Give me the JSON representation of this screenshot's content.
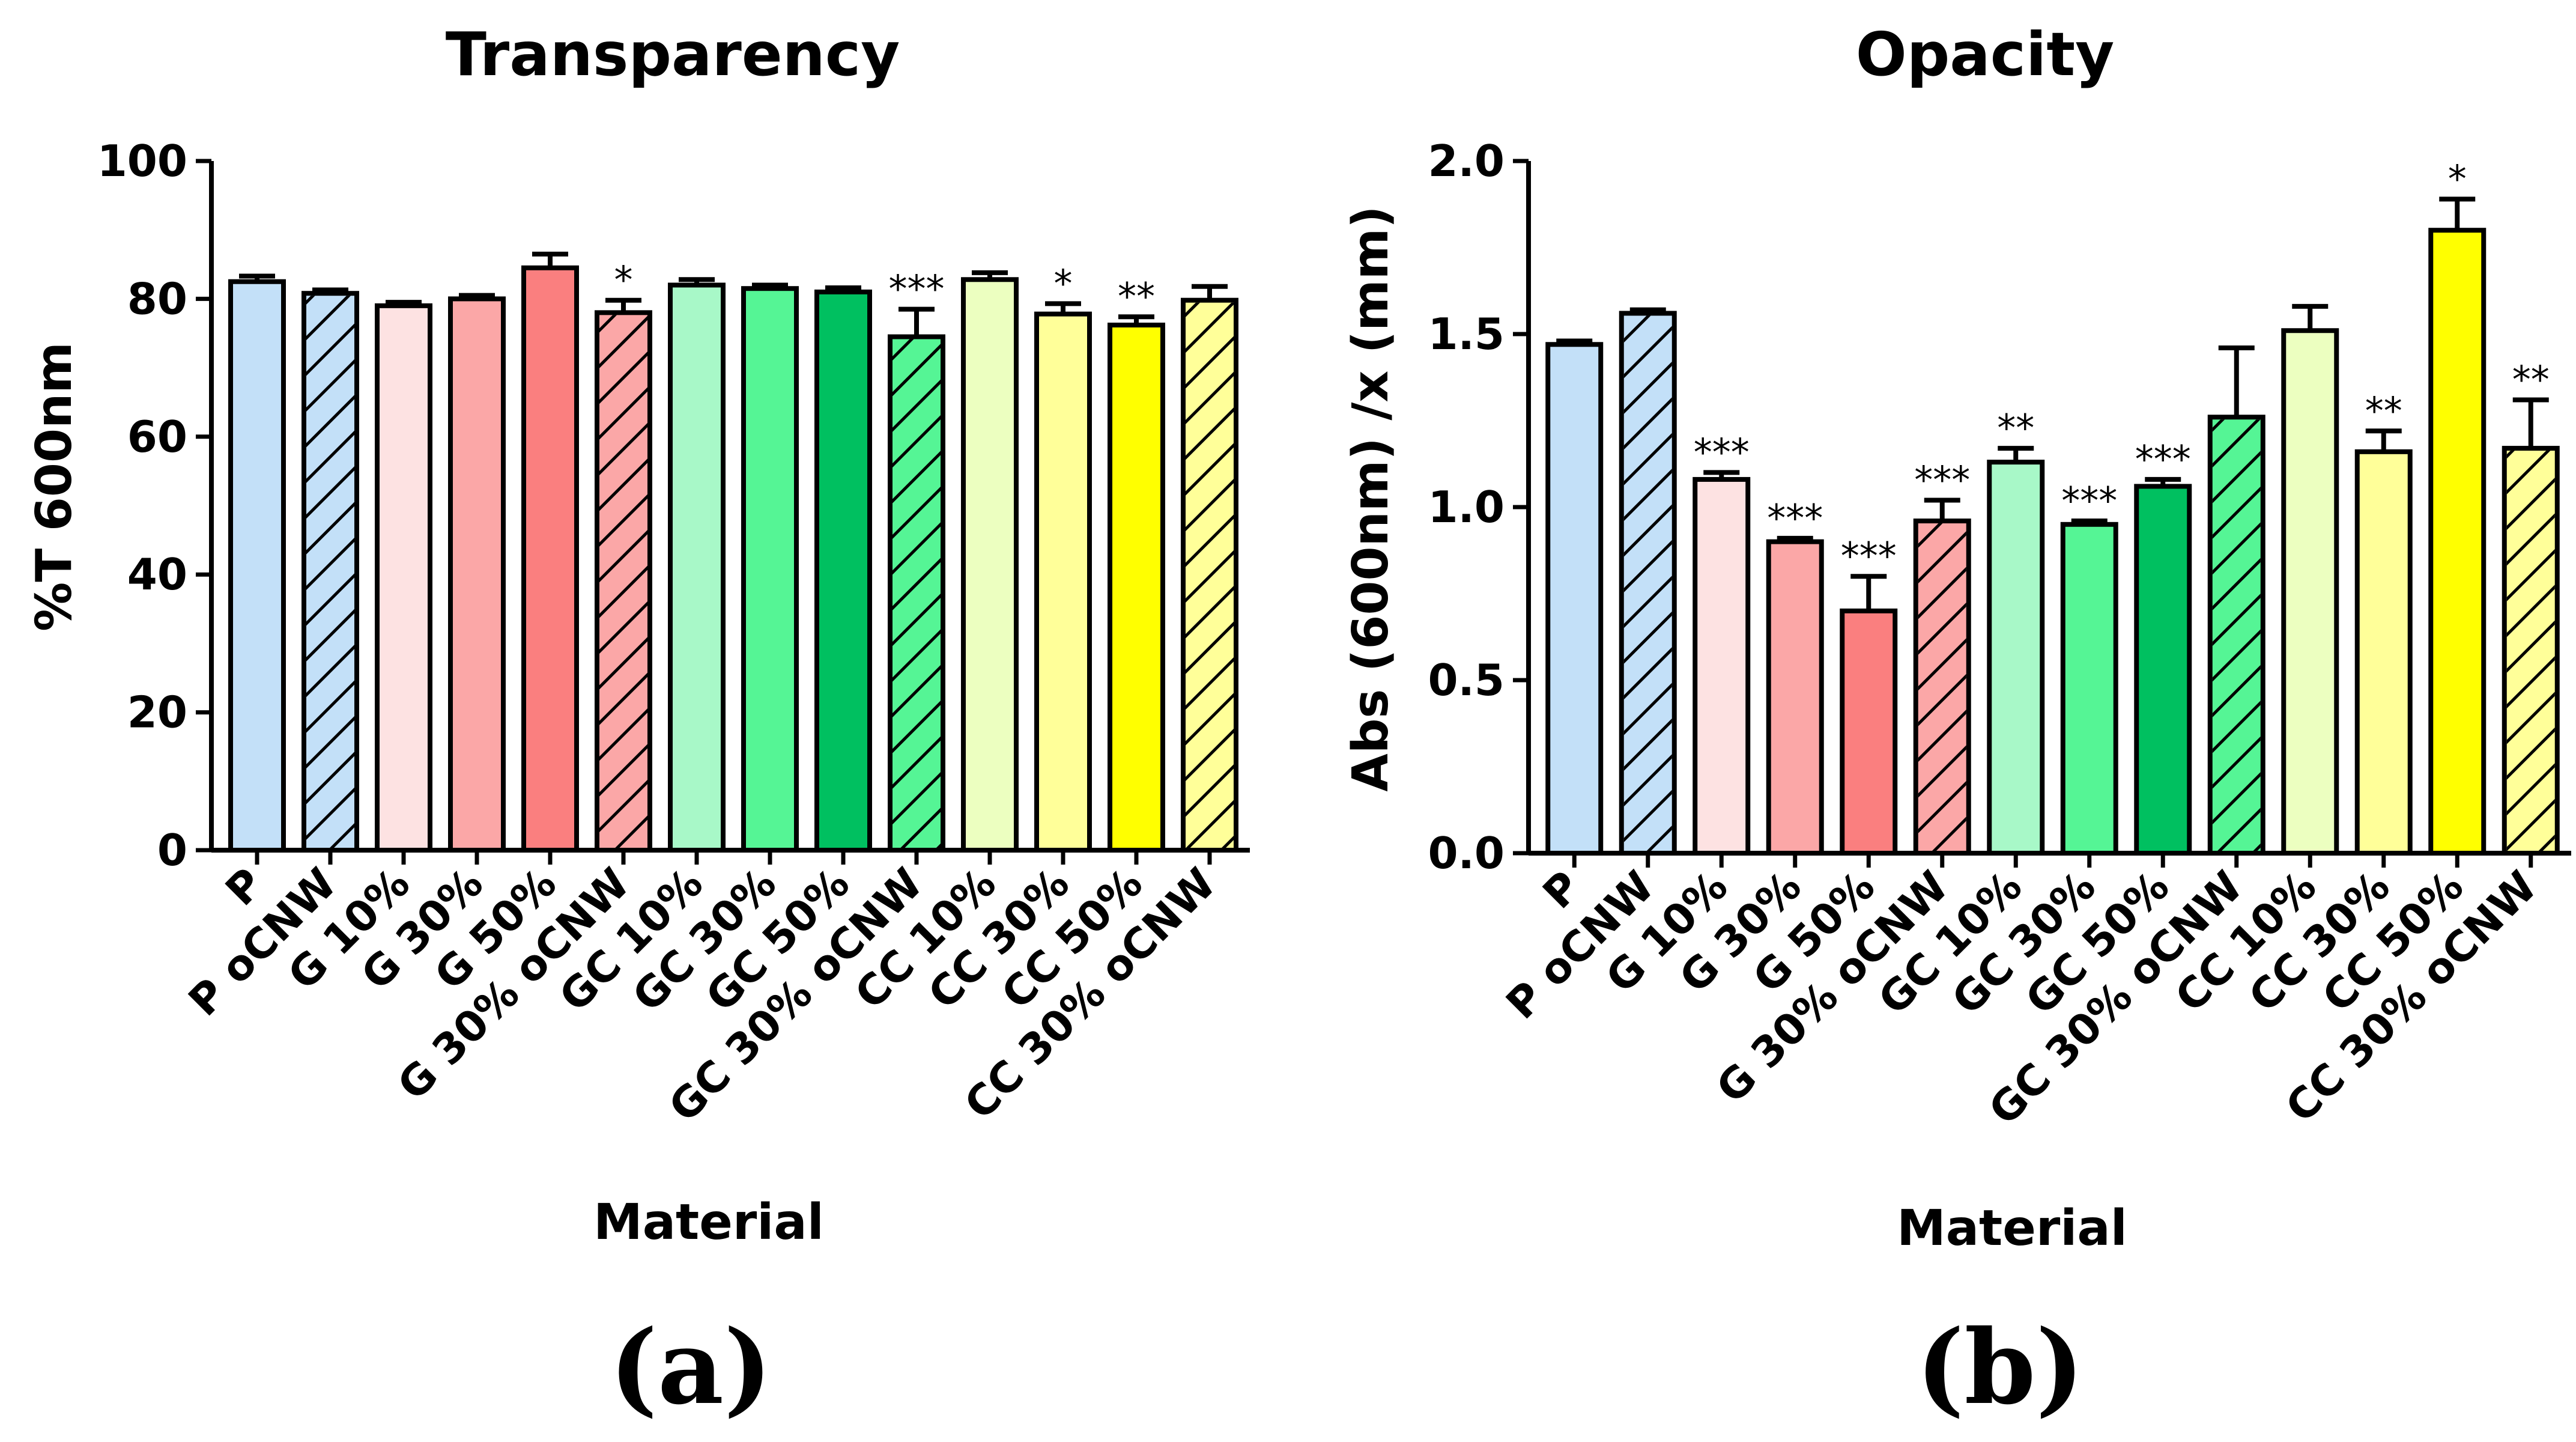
{
  "chart_data": [
    {
      "panel_label": "(a)",
      "type": "bar",
      "title": "Transparency",
      "xlabel": "Material",
      "ylabel": "%T 600nm",
      "ylim": [
        0,
        100
      ],
      "yticks": [
        "0",
        "20",
        "40",
        "60",
        "80",
        "100"
      ],
      "categories": [
        "P",
        "P oCNW",
        "G 10%",
        "G 30%",
        "G 50%",
        "G 30% oCNW",
        "GC 10%",
        "GC 30%",
        "GC 50%",
        "GC 30% oCNW",
        "CC 10%",
        "CC 30%",
        "CC 50%",
        "CC 30% oCNW"
      ],
      "values": [
        82.5,
        80.8,
        79.0,
        80.0,
        84.5,
        78.0,
        82.0,
        81.5,
        81.0,
        74.5,
        82.8,
        77.8,
        76.2,
        79.8
      ],
      "errors": [
        0.8,
        0.5,
        0.5,
        0.5,
        2.0,
        1.8,
        0.8,
        0.5,
        0.6,
        4.0,
        1.0,
        1.5,
        1.2,
        2.0
      ],
      "significance": [
        "",
        "",
        "",
        "",
        "",
        "*",
        "",
        "",
        "",
        "***",
        "",
        "*",
        "**",
        ""
      ],
      "colors": [
        "#c3e0f8",
        "#c3e0f8",
        "#fde2e2",
        "#fba7a7",
        "#fa7f7f",
        "#fba7a7",
        "#a8f8c8",
        "#55f595",
        "#00c060",
        "#55f595",
        "#ecffc0",
        "#ffff99",
        "#ffff00",
        "#ffff99"
      ],
      "hatched": [
        false,
        true,
        false,
        false,
        false,
        true,
        false,
        false,
        false,
        true,
        false,
        false,
        false,
        true
      ]
    },
    {
      "panel_label": "(b)",
      "type": "bar",
      "title": "Opacity",
      "xlabel": "Material",
      "ylabel": "Abs (600nm) /x (mm)",
      "ylim": [
        0,
        2.0
      ],
      "yticks": [
        "0.0",
        "0.5",
        "1.0",
        "1.5",
        "2.0"
      ],
      "categories": [
        "P",
        "P oCNW",
        "G 10%",
        "G 30%",
        "G 50%",
        "G 30% oCNW",
        "GC 10%",
        "GC 30%",
        "GC 50%",
        "GC 30% oCNW",
        "CC 10%",
        "CC 30%",
        "CC 50%",
        "CC 30% oCNW"
      ],
      "values": [
        1.47,
        1.56,
        1.08,
        0.9,
        0.7,
        0.96,
        1.13,
        0.95,
        1.06,
        1.26,
        1.51,
        1.16,
        1.8,
        1.17
      ],
      "errors": [
        0.01,
        0.01,
        0.02,
        0.01,
        0.1,
        0.06,
        0.04,
        0.01,
        0.02,
        0.2,
        0.07,
        0.06,
        0.09,
        0.14
      ],
      "significance": [
        "",
        "",
        "***",
        "***",
        "***",
        "***",
        "**",
        "***",
        "***",
        "",
        "",
        "**",
        "*",
        "**"
      ],
      "colors": [
        "#c3e0f8",
        "#c3e0f8",
        "#fde2e2",
        "#fba7a7",
        "#fa7f7f",
        "#fba7a7",
        "#a8f8c8",
        "#55f595",
        "#00c060",
        "#55f595",
        "#ecffc0",
        "#ffff99",
        "#ffff00",
        "#ffff99"
      ],
      "hatched": [
        false,
        true,
        false,
        false,
        false,
        true,
        false,
        false,
        false,
        true,
        false,
        false,
        false,
        true
      ]
    }
  ]
}
